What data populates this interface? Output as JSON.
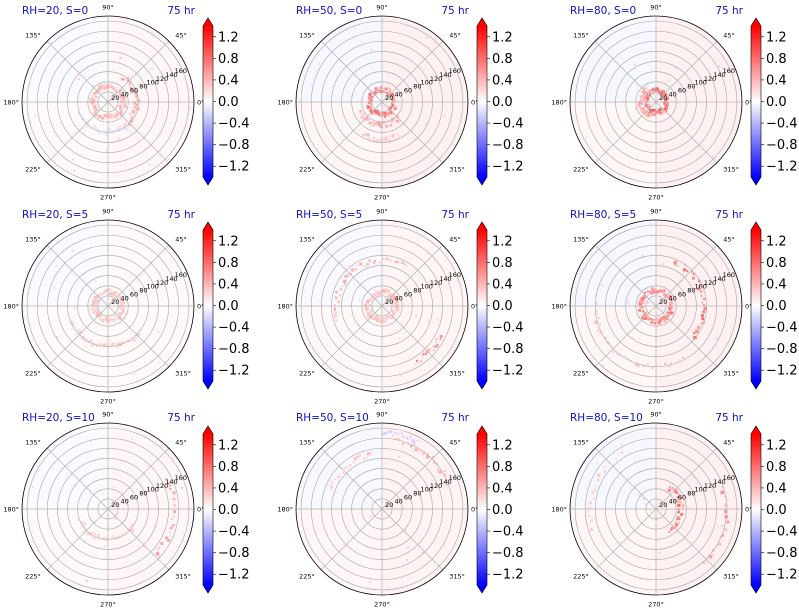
{
  "chart_data": {
    "type": "polar-heatmap",
    "time_label": "75 hr",
    "angle_ticks": [
      "0°",
      "45°",
      "90°",
      "135°",
      "180°",
      "225°",
      "270°",
      "315°"
    ],
    "radial_ticks": [
      20,
      40,
      60,
      80,
      100,
      120,
      140,
      160
    ],
    "r_max": 170,
    "colorbar": {
      "ticks": [
        "1.2",
        "0.8",
        "0.4",
        "0.0",
        "−0.4",
        "−0.8",
        "−1.2"
      ],
      "tick_values": [
        1.2,
        0.8,
        0.4,
        0.0,
        -0.4,
        -0.8,
        -1.2
      ],
      "vmin": -1.4,
      "vmax": 1.4,
      "extend": "both",
      "colors": {
        "low": "#0000ff",
        "mid": "#ffffff",
        "high": "#ff0000"
      }
    },
    "panels": [
      {
        "title": "RH=20, S=0",
        "rh": 20,
        "s": 0,
        "background": 0.05,
        "features": [
          {
            "r": 30,
            "theta_from": 0,
            "theta_to": 360,
            "value": 0.45
          },
          {
            "r": 58,
            "theta_from": -60,
            "theta_to": 60,
            "value": 0.55
          },
          {
            "r": 60,
            "theta_from": 200,
            "theta_to": 310,
            "value": -0.15
          }
        ]
      },
      {
        "title": "RH=50, S=0",
        "rh": 50,
        "s": 0,
        "background": 0.08,
        "features": [
          {
            "r": 25,
            "theta_from": 0,
            "theta_to": 360,
            "value": 0.8
          },
          {
            "r": 45,
            "theta_from": 200,
            "theta_to": 320,
            "value": 0.5
          },
          {
            "r": 75,
            "theta_from": 240,
            "theta_to": 300,
            "value": 0.35
          }
        ]
      },
      {
        "title": "RH=80, S=0",
        "rh": 80,
        "s": 0,
        "background": 0.08,
        "features": [
          {
            "r": 22,
            "theta_from": 0,
            "theta_to": 360,
            "value": 0.9
          },
          {
            "r": 30,
            "theta_from": 120,
            "theta_to": 250,
            "value": 0.5
          }
        ]
      },
      {
        "title": "RH=20, S=5",
        "rh": 20,
        "s": 5,
        "background": 0.04,
        "features": [
          {
            "r": 28,
            "theta_from": 0,
            "theta_to": 360,
            "value": 0.35
          },
          {
            "r": 80,
            "theta_from": 200,
            "theta_to": 320,
            "value": 0.3
          }
        ]
      },
      {
        "title": "RH=50, S=5",
        "rh": 50,
        "s": 5,
        "background": 0.06,
        "features": [
          {
            "r": 28,
            "theta_from": 0,
            "theta_to": 360,
            "value": 0.4
          },
          {
            "r": 90,
            "theta_from": 60,
            "theta_to": 200,
            "value": 0.5
          },
          {
            "r": 130,
            "theta_from": 300,
            "theta_to": 335,
            "value": 0.6
          }
        ]
      },
      {
        "title": "RH=80, S=5",
        "rh": 80,
        "s": 5,
        "background": 0.08,
        "features": [
          {
            "r": 30,
            "theta_from": 0,
            "theta_to": 360,
            "value": 0.7
          },
          {
            "r": 95,
            "theta_from": -40,
            "theta_to": 70,
            "value": 0.8
          },
          {
            "r": 120,
            "theta_from": 170,
            "theta_to": 300,
            "value": 0.35
          }
        ]
      },
      {
        "title": "RH=20, S=10",
        "rh": 20,
        "s": 10,
        "background": 0.05,
        "features": [
          {
            "r": 130,
            "theta_from": -45,
            "theta_to": 30,
            "value": 0.55
          },
          {
            "r": 60,
            "theta_from": 200,
            "theta_to": 330,
            "value": 0.25
          }
        ]
      },
      {
        "title": "RH=50, S=10",
        "rh": 50,
        "s": 10,
        "background": 0.07,
        "features": [
          {
            "r": 140,
            "theta_from": 20,
            "theta_to": 80,
            "value": 0.55
          },
          {
            "r": 110,
            "theta_from": 100,
            "theta_to": 160,
            "value": 0.35
          },
          {
            "r": 150,
            "theta_from": 60,
            "theta_to": 90,
            "value": -0.3
          }
        ]
      },
      {
        "title": "RH=80, S=10",
        "rh": 80,
        "s": 10,
        "background": 0.08,
        "features": [
          {
            "r": 50,
            "theta_from": -60,
            "theta_to": 60,
            "value": 0.8
          },
          {
            "r": 140,
            "theta_from": -50,
            "theta_to": 20,
            "value": 0.6
          },
          {
            "r": 130,
            "theta_from": 120,
            "theta_to": 200,
            "value": 0.3
          }
        ]
      }
    ]
  }
}
